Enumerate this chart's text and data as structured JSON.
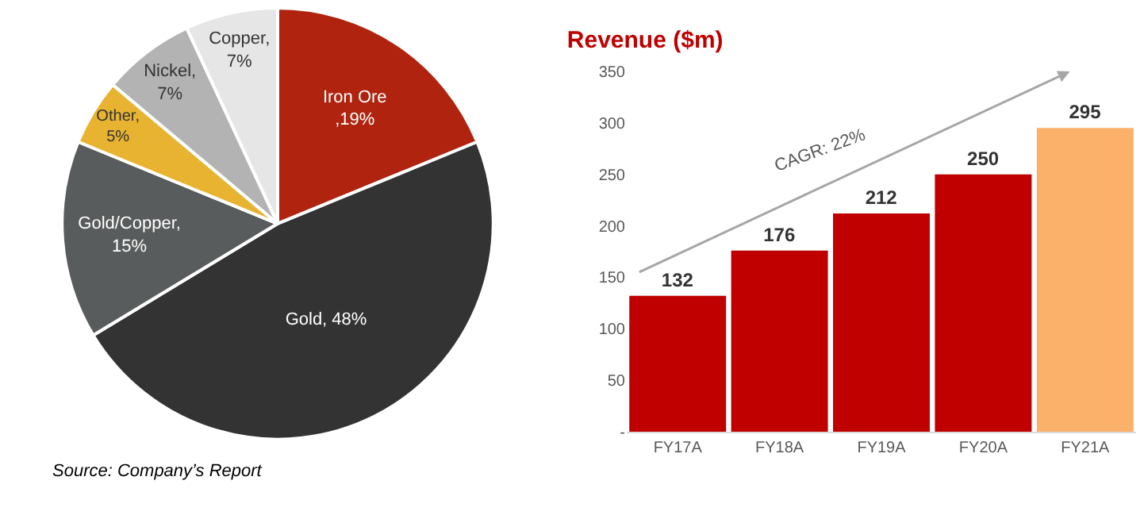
{
  "chart_data": [
    {
      "type": "pie",
      "categories": [
        "Iron Ore",
        "Gold",
        "Gold/Copper",
        "Other",
        "Nickel",
        "Copper"
      ],
      "values": [
        19,
        48,
        15,
        5,
        7,
        7
      ],
      "value_labels": [
        ",19%",
        ", 48%",
        ",15%",
        ",5%",
        ",7%",
        ",7%"
      ],
      "colors": [
        "#b0240f",
        "#333333",
        "#595c5c",
        "#e8b330",
        "#b3b3b3",
        "#e6e6e6"
      ],
      "annotations": [
        "Source: Company’s Report"
      ]
    },
    {
      "type": "bar",
      "title": "Revenue ($m)",
      "categories": [
        "FY17A",
        "FY18A",
        "FY19A",
        "FY20A",
        "FY21A"
      ],
      "values": [
        132,
        176,
        212,
        250,
        295
      ],
      "colors": [
        "#c00000",
        "#c00000",
        "#c00000",
        "#c00000",
        "#fbb16a"
      ],
      "ylim": [
        0,
        350
      ],
      "yticks": [
        {
          "value": 0,
          "label": "-"
        },
        50,
        100,
        150,
        200,
        250,
        300,
        350
      ],
      "data_labels": true,
      "grid": false,
      "annotations": [
        "CAGR: 22%"
      ]
    }
  ]
}
